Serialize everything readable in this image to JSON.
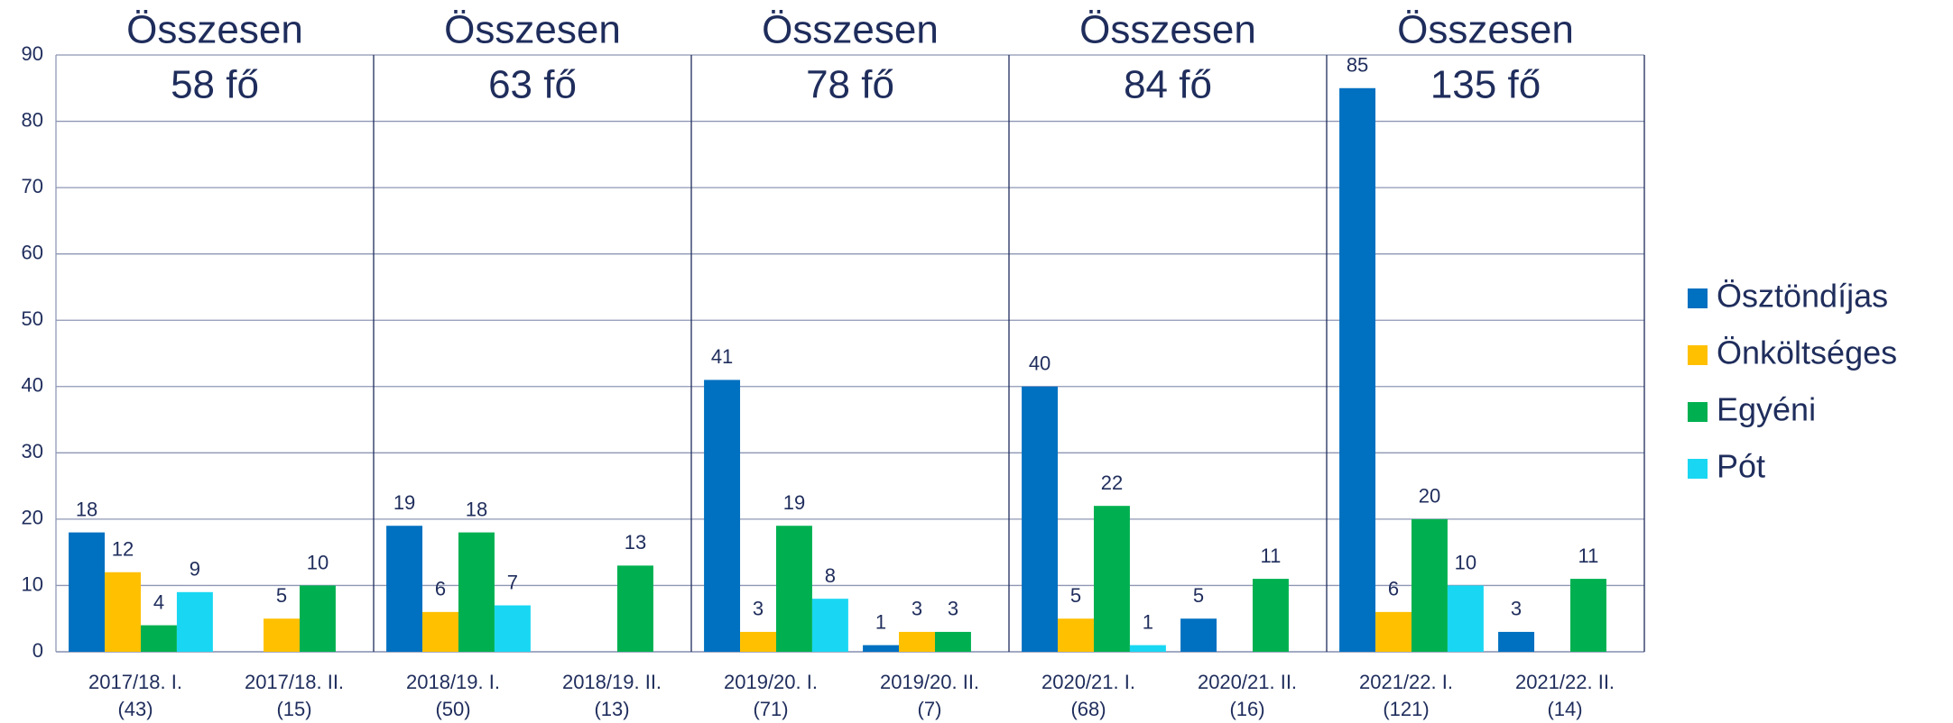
{
  "chart_data": {
    "type": "bar",
    "categories": [
      [
        "2017/18. I.",
        "(43)"
      ],
      [
        "2017/18. II.",
        "(15)"
      ],
      [
        "2018/19. I.",
        "(50)"
      ],
      [
        "2018/19. II.",
        "(13)"
      ],
      [
        "2019/20. I.",
        "(71)"
      ],
      [
        "2019/20. II.",
        "(7)"
      ],
      [
        "2020/21. I.",
        "(68)"
      ],
      [
        "2020/21. II.",
        "(16)"
      ],
      [
        "2021/22. I.",
        "(121)"
      ],
      [
        "2021/22. II.",
        "(14)"
      ]
    ],
    "series": [
      {
        "name": "Ösztöndíjas",
        "color": "#0070c0",
        "values": [
          18,
          null,
          19,
          null,
          41,
          1,
          40,
          5,
          85,
          3
        ]
      },
      {
        "name": "Önköltséges",
        "color": "#ffc000",
        "values": [
          12,
          5,
          6,
          null,
          3,
          3,
          5,
          null,
          6,
          null
        ]
      },
      {
        "name": "Egyéni",
        "color": "#00b050",
        "values": [
          4,
          10,
          18,
          13,
          19,
          3,
          22,
          11,
          20,
          11
        ]
      },
      {
        "name": "Pót",
        "color": "#19d7f2",
        "values": [
          9,
          null,
          7,
          null,
          8,
          null,
          1,
          null,
          10,
          null
        ]
      }
    ],
    "annotations": [
      [
        "Összesen",
        "58 fő"
      ],
      [
        "Összesen",
        "63 fő"
      ],
      [
        "Összesen",
        "78 fő"
      ],
      [
        "Összesen",
        "84 fő"
      ],
      [
        "Összesen",
        "135 fő"
      ]
    ],
    "ylim": [
      0,
      90
    ],
    "yticks": [
      0,
      10,
      20,
      30,
      40,
      50,
      60,
      70,
      80,
      90
    ],
    "grid": true,
    "legend": "right"
  }
}
